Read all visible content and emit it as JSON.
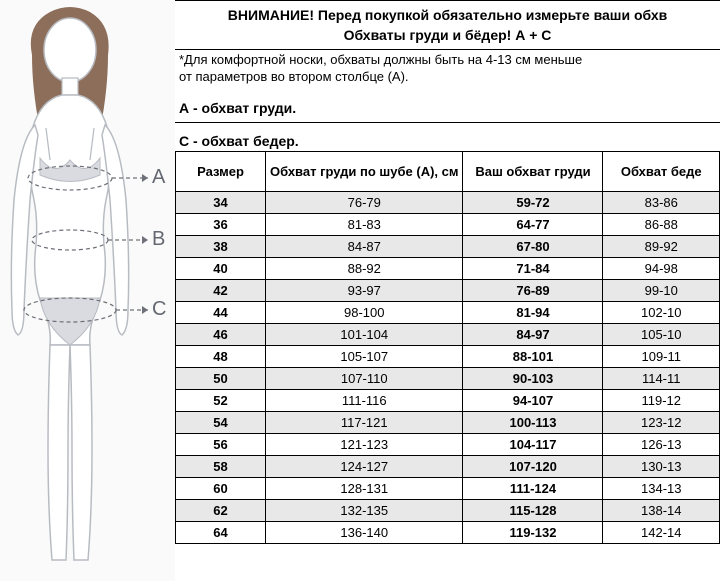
{
  "header": {
    "warnLine": "ВНИМАНИЕ! Перед покупкой обязательно измерьте ваши обхв",
    "subLine": "Обхваты груди и бёдер! А + С",
    "note1": "*Для комфортной носки, обхваты должны быть на 4-13 см меньше",
    "note2": "от параметров во втором столбце (А).",
    "sectionA": "А - обхват груди.",
    "sectionC": "С - обхват бедер."
  },
  "figureLabels": {
    "A": "A",
    "B": "B",
    "C": "C"
  },
  "table": {
    "columns": [
      "Размер",
      "Обхват груди по шубе (А), см",
      "Ваш обхват груди",
      "Обхват беде"
    ],
    "rows": [
      [
        "34",
        "76-79",
        "59-72",
        "83-86"
      ],
      [
        "36",
        "81-83",
        "64-77",
        "86-88"
      ],
      [
        "38",
        "84-87",
        "67-80",
        "89-92"
      ],
      [
        "40",
        "88-92",
        "71-84",
        "94-98"
      ],
      [
        "42",
        "93-97",
        "76-89",
        "99-10"
      ],
      [
        "44",
        "98-100",
        "81-94",
        "102-10"
      ],
      [
        "46",
        "101-104",
        "84-97",
        "105-10"
      ],
      [
        "48",
        "105-107",
        "88-101",
        "109-11"
      ],
      [
        "50",
        "107-110",
        "90-103",
        "114-11"
      ],
      [
        "52",
        "111-116",
        "94-107",
        "119-12"
      ],
      [
        "54",
        "117-121",
        "100-113",
        "123-12"
      ],
      [
        "56",
        "121-123",
        "104-117",
        "126-13"
      ],
      [
        "58",
        "124-127",
        "107-120",
        "130-13"
      ],
      [
        "60",
        "128-131",
        "111-124",
        "134-13"
      ],
      [
        "62",
        "132-135",
        "115-128",
        "138-14"
      ],
      [
        "64",
        "136-140",
        "119-132",
        "142-14"
      ]
    ],
    "colors": {
      "rowAlt": "#e8e8e8",
      "border": "#000000",
      "background": "#ffffff"
    }
  },
  "figureColors": {
    "bodyFill": "#ffffff",
    "bodyStroke": "#b8bcc2",
    "hairFill": "#8c6e5a",
    "underwearFill": "#d9dbe0",
    "dashColor": "#6d7078",
    "labelColor": "#646871"
  }
}
